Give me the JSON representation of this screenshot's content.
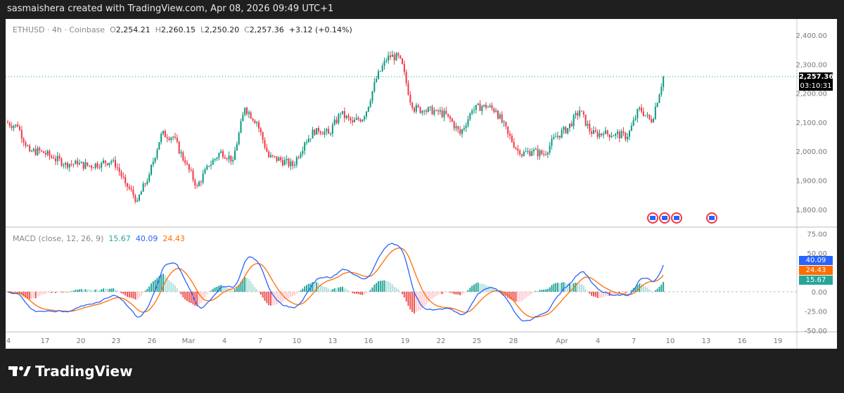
{
  "header": {
    "credit": "sasmaishera created with TradingView.com, Apr 08, 2026 09:49 UTC+1"
  },
  "legend": {
    "symbol": "ETHUSD · 4h · Coinbase",
    "o_label": "O",
    "open": "2,254.21",
    "h_label": "H",
    "high": "2,260.15",
    "l_label": "L",
    "low": "2,250.20",
    "c_label": "C",
    "close": "2,257.36",
    "change": "+3.12 (+0.14%)"
  },
  "price_tag": {
    "price": "2,257.36",
    "countdown": "03:10:31"
  },
  "macd": {
    "label": "MACD (close, 12, 26, 9)",
    "hist": "15.67",
    "macd": "40.09",
    "signal": "24.43"
  },
  "colors": {
    "up": "#089981",
    "down": "#f23645",
    "macd": "#2962ff",
    "signal": "#ff6d00",
    "hist_up": "#26a69a",
    "hist_down": "#ef5350"
  },
  "footer": {
    "brand": "TradingView"
  },
  "chart_data": {
    "type": "candlestick",
    "timeframe": "4h",
    "price_ticks": [
      "2,400.00",
      "2,300.00",
      "2,200.00",
      "2,100.00",
      "2,000.00",
      "1,900.00",
      "1,800.00"
    ],
    "macd_ticks": [
      "75.00",
      "50.00",
      "0.00",
      "-25.00",
      "-50.00"
    ],
    "time_ticks": [
      "4",
      "17",
      "20",
      "23",
      "26",
      "Mar",
      "4",
      "7",
      "10",
      "13",
      "16",
      "19",
      "22",
      "25",
      "28",
      "Apr",
      "4",
      "7",
      "10",
      "13",
      "16",
      "19"
    ],
    "daily_closes": [
      2085,
      2000,
      2000,
      1975,
      1960,
      1955,
      1950,
      1960,
      1970,
      1890,
      1830,
      1920,
      2060,
      2050,
      1960,
      1880,
      1950,
      2000,
      1970,
      2150,
      2100,
      1980,
      1970,
      1950,
      2030,
      2080,
      2060,
      2130,
      2100,
      2120,
      2250,
      2330,
      2320,
      2150,
      2140,
      2140,
      2120,
      2060,
      2140,
      2160,
      2140,
      2060,
      1990,
      2000,
      1990,
      2050,
      2080,
      2140,
      2060,
      2060,
      2060,
      2050,
      2150,
      2100,
      2257
    ],
    "price_range": [
      1750,
      2450
    ]
  }
}
